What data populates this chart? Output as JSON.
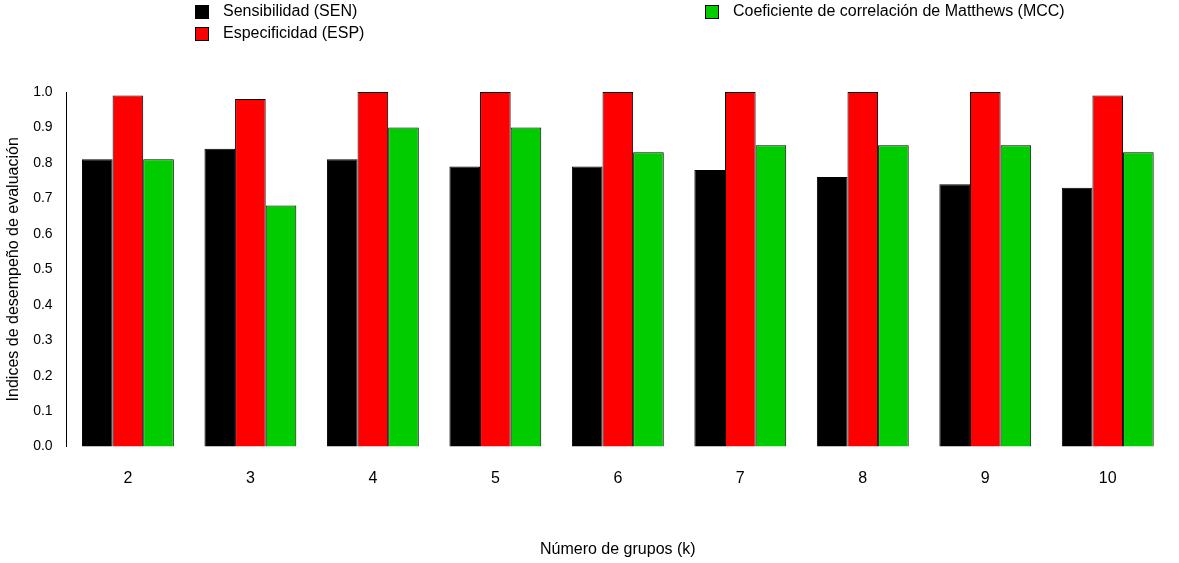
{
  "chart_data": {
    "type": "bar",
    "xlabel": "Número de grupos (k)",
    "ylabel": "Indices de desempeño de evaluación",
    "categories": [
      "2",
      "3",
      "4",
      "5",
      "6",
      "7",
      "8",
      "9",
      "10"
    ],
    "series": [
      {
        "name": "Sensibilidad (SEN)",
        "color": "#000000",
        "values": [
          0.81,
          0.84,
          0.81,
          0.79,
          0.79,
          0.78,
          0.76,
          0.74,
          0.73
        ]
      },
      {
        "name": "Especificidad (ESP)",
        "color": "#ff0000",
        "values": [
          0.99,
          0.98,
          1.0,
          1.0,
          1.0,
          1.0,
          1.0,
          1.0,
          0.99
        ]
      },
      {
        "name": "Coeficiente de correlación de Matthews (MCC)",
        "color": "#00cc00",
        "values": [
          0.81,
          0.68,
          0.9,
          0.9,
          0.83,
          0.85,
          0.85,
          0.85,
          0.83
        ]
      }
    ],
    "ylim": [
      0,
      1
    ],
    "yticks": [
      {
        "value": 0,
        "label": "0.0"
      },
      {
        "value": 0.1,
        "label": "0.1"
      },
      {
        "value": 0.2,
        "label": "0.2"
      },
      {
        "value": 0.3,
        "label": "0.3"
      },
      {
        "value": 0.4,
        "label": "0.4"
      },
      {
        "value": 0.5,
        "label": "0.5"
      },
      {
        "value": 0.6,
        "label": "0.6"
      },
      {
        "value": 0.7,
        "label": "0.7"
      },
      {
        "value": 0.8,
        "label": "0.8"
      },
      {
        "value": 0.9,
        "label": "0.9"
      },
      {
        "value": 1,
        "label": "1.0"
      }
    ],
    "grid": false,
    "legend": "top"
  }
}
